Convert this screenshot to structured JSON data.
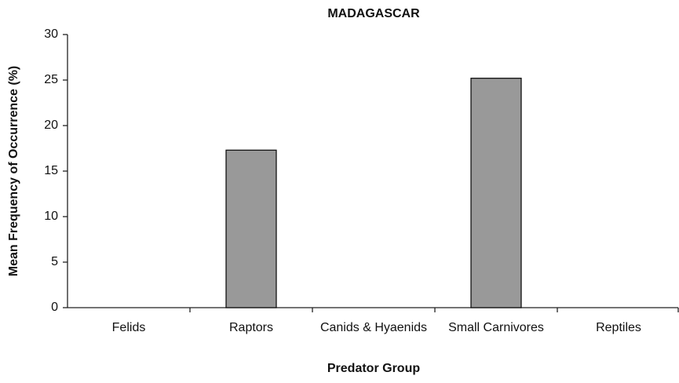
{
  "chart_data": {
    "type": "bar",
    "title": "MADAGASCAR",
    "x_label": "Predator Group",
    "y_label": "Mean Frequency of Occurrence (%)",
    "categories": [
      "Felids",
      "Raptors",
      "Canids & Hyaenids",
      "Small Carnivores",
      "Reptiles"
    ],
    "values": [
      0,
      17.3,
      0,
      25.2,
      0
    ],
    "color": "#999999",
    "ylim": [
      0,
      30
    ],
    "yticks": [
      0,
      5,
      10,
      15,
      20,
      25,
      30
    ],
    "grid": false
  }
}
